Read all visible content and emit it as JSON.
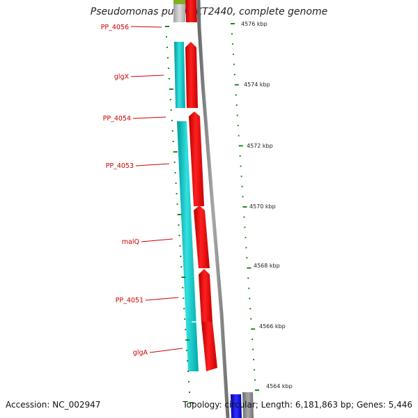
{
  "title": "Pseudomonas putida KT2440, complete genome",
  "footer": {
    "accession": "Accession: NC_002947",
    "summary": "Topology: circular; Length: 6,181,863 bp; Genes: 5,446"
  },
  "gene_labels": [
    "PP_4056",
    "glgX",
    "PP_4054",
    "PP_4053",
    "malQ",
    "PP_4051",
    "glgA"
  ],
  "kbp_labels": [
    "4576 kbp",
    "4574 kbp",
    "4572 kbp",
    "4570 kbp",
    "4568 kbp",
    "4566 kbp",
    "4564 kbp"
  ],
  "colors": {
    "gene_label": "#cc0000",
    "tick": "#1a8a1a",
    "feature_red": "#ee0000",
    "feature_cyan": "#00c8c8",
    "backbone": "#888888",
    "blue_feature": "#0000dd"
  }
}
